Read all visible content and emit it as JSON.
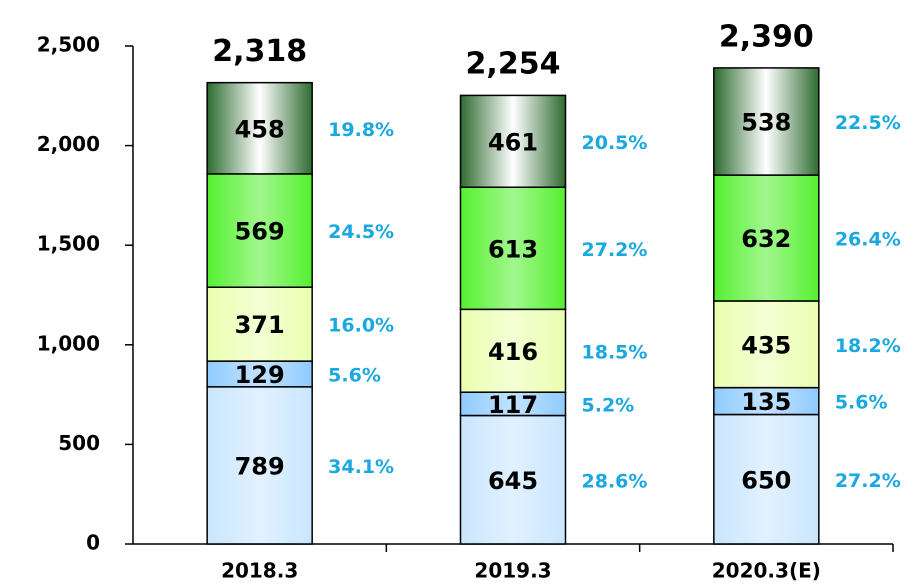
{
  "chart_data": {
    "type": "stacked_bar",
    "categories": [
      "2018.3",
      "2019.3",
      "2020.3(E)"
    ],
    "series": [
      {
        "color": "#c9e6ff",
        "values": [
          789,
          645,
          650
        ],
        "percent_labels": [
          "34.1%",
          "28.6%",
          "27.2%"
        ]
      },
      {
        "color": "#8fcbff",
        "values": [
          129,
          117,
          135
        ],
        "percent_labels": [
          "5.6%",
          "5.2%",
          "5.6%"
        ]
      },
      {
        "color": "#eaffb0",
        "values": [
          371,
          416,
          435
        ],
        "percent_labels": [
          "16.0%",
          "18.5%",
          "18.2%"
        ]
      },
      {
        "color": "#55f030",
        "values": [
          569,
          613,
          632
        ],
        "percent_labels": [
          "24.5%",
          "27.2%",
          "26.4%"
        ]
      },
      {
        "color": "#2e6b30",
        "values": [
          458,
          461,
          538
        ],
        "percent_labels": [
          "19.8%",
          "20.5%",
          "22.5%"
        ]
      }
    ],
    "totals": [
      2318,
      2254,
      2390
    ],
    "total_labels": [
      "2,318",
      "2,254",
      "2,390"
    ],
    "percent_color": "#1aa8e0",
    "ylim": [
      0,
      2500
    ],
    "yticks": [
      0,
      500,
      {
        "value": 1000,
        "label": "1,000"
      },
      {
        "value": 1500,
        "label": "1,500"
      },
      {
        "value": 2000,
        "label": "2,000"
      },
      {
        "value": 2500,
        "label": "2,500"
      }
    ]
  }
}
